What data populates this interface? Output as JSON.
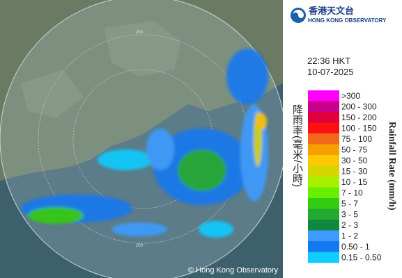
{
  "header": {
    "title_zh": "香港天文台",
    "title_en": "HONG KONG OBSERVATORY"
  },
  "timestamp": {
    "time": "22:36 HKT",
    "date": "10-07-2025"
  },
  "legend": {
    "title_zh": "降雨率(毫米/小時)",
    "title_en": "Rainfall Rate (mm/h)",
    "items": [
      {
        "label": ">300",
        "color": "#ff00ff"
      },
      {
        "label": "200 - 300",
        "color": "#c8008c"
      },
      {
        "label": "150 - 200",
        "color": "#e0003c"
      },
      {
        "label": "100 - 150",
        "color": "#ff1010"
      },
      {
        "label": "75 - 100",
        "color": "#f06a1a"
      },
      {
        "label": "50 - 75",
        "color": "#f5a000"
      },
      {
        "label": "30 - 50",
        "color": "#ffc800"
      },
      {
        "label": "15 - 30",
        "color": "#d6d600"
      },
      {
        "label": "10 - 15",
        "color": "#a8f000"
      },
      {
        "label": "7 - 10",
        "color": "#66f000"
      },
      {
        "label": "5 - 7",
        "color": "#33cc11"
      },
      {
        "label": "3 - 5",
        "color": "#22aa33"
      },
      {
        "label": "2 - 3",
        "color": "#118840"
      },
      {
        "label": "1 - 2",
        "color": "#3d9cff"
      },
      {
        "label": "0.50 - 1",
        "color": "#1478f0"
      },
      {
        "label": "0.15 - 0.50",
        "color": "#10ccff"
      }
    ]
  },
  "map": {
    "range_label": "200",
    "copyright": "© Hong Kong Observatory"
  }
}
